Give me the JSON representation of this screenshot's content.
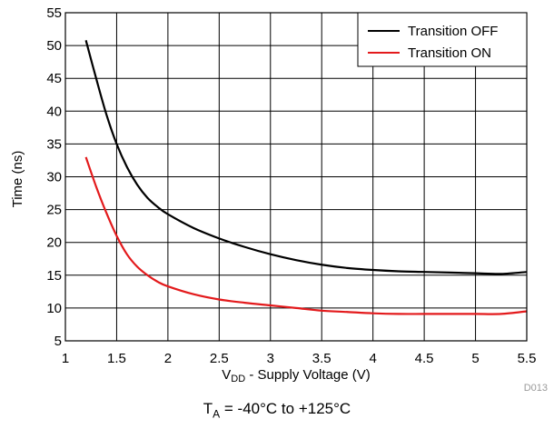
{
  "chart_data": {
    "type": "line",
    "xlim": [
      1,
      5.5
    ],
    "ylim": [
      5,
      55
    ],
    "x_ticks": [
      1,
      1.5,
      2,
      2.5,
      3,
      3.5,
      4,
      4.5,
      5,
      5.5
    ],
    "x_tick_labels": [
      "1",
      "1.5",
      "2",
      "2.5",
      "3",
      "3.5",
      "4",
      "4.5",
      "5",
      "5.5"
    ],
    "y_ticks": [
      5,
      10,
      15,
      20,
      25,
      30,
      35,
      40,
      45,
      50,
      55
    ],
    "y_tick_labels": [
      "5",
      "10",
      "15",
      "20",
      "25",
      "30",
      "35",
      "40",
      "45",
      "50",
      "55"
    ],
    "grid": true,
    "legend_position": "top-right",
    "xlabel_main": "V",
    "xlabel_sub": "DD",
    "xlabel_rest": " - Supply Voltage (V)",
    "ylabel": "Time (ns)",
    "series": [
      {
        "name": "Transition OFF",
        "color": "#000000",
        "x": [
          1.2,
          1.3,
          1.4,
          1.5,
          1.6,
          1.7,
          1.8,
          1.9,
          2.0,
          2.25,
          2.5,
          2.75,
          3.0,
          3.25,
          3.5,
          3.75,
          4.0,
          4.25,
          4.5,
          4.75,
          5.0,
          5.25,
          5.5
        ],
        "values": [
          50.8,
          45.0,
          39.5,
          35.0,
          31.5,
          28.8,
          26.8,
          25.4,
          24.3,
          22.2,
          20.6,
          19.3,
          18.2,
          17.3,
          16.6,
          16.1,
          15.8,
          15.6,
          15.5,
          15.4,
          15.3,
          15.2,
          15.5
        ]
      },
      {
        "name": "Transition ON",
        "color": "#e31a1c",
        "x": [
          1.2,
          1.3,
          1.4,
          1.5,
          1.6,
          1.7,
          1.8,
          1.9,
          2.0,
          2.25,
          2.5,
          2.75,
          3.0,
          3.25,
          3.5,
          3.75,
          4.0,
          4.25,
          4.5,
          4.75,
          5.0,
          5.25,
          5.5
        ],
        "values": [
          33.0,
          28.5,
          24.5,
          21.0,
          18.2,
          16.3,
          15.0,
          14.0,
          13.3,
          12.1,
          11.3,
          10.8,
          10.4,
          10.0,
          9.6,
          9.4,
          9.2,
          9.1,
          9.1,
          9.1,
          9.1,
          9.1,
          9.5
        ]
      }
    ]
  },
  "figure_id": "D013",
  "caption": {
    "main": "T",
    "sub": "A",
    "rest": " = -40°C to +125°C"
  }
}
